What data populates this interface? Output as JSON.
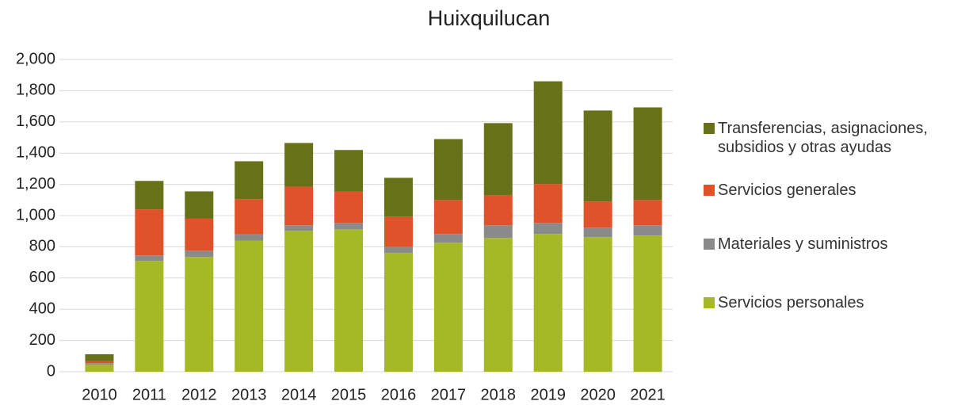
{
  "chart_data": {
    "type": "stacked_bar",
    "title": "Huixquilucan",
    "categories": [
      "2010",
      "2011",
      "2012",
      "2013",
      "2014",
      "2015",
      "2016",
      "2017",
      "2018",
      "2019",
      "2020",
      "2021"
    ],
    "series": [
      {
        "name": "Servicios personales",
        "color": "#a5b826",
        "values": [
          45,
          710,
          735,
          840,
          902,
          912,
          760,
          826,
          857,
          882,
          862,
          872
        ]
      },
      {
        "name": "Materiales y suministros",
        "color": "#8a8a8a",
        "values": [
          10,
          35,
          40,
          40,
          36,
          41,
          40,
          56,
          81,
          71,
          61,
          66
        ]
      },
      {
        "name": "Servicios generales",
        "color": "#e0522a",
        "values": [
          12,
          295,
          205,
          225,
          247,
          202,
          193,
          218,
          192,
          249,
          167,
          162
        ]
      },
      {
        "name": "Transferencias, asignaciones, subsidios y otras ayudas",
        "color": "#667118",
        "values": [
          45,
          182,
          175,
          243,
          280,
          265,
          249,
          390,
          462,
          658,
          583,
          593
        ]
      }
    ],
    "ylim": [
      0,
      2000
    ],
    "yticks": [
      0,
      200,
      400,
      600,
      800,
      {
        "value": 1000,
        "label": "1,000"
      },
      {
        "value": 1200,
        "label": "1,200"
      },
      {
        "value": 1400,
        "label": "1,400"
      },
      {
        "value": 1600,
        "label": "1,600"
      },
      {
        "value": 1800,
        "label": "1,800"
      },
      {
        "value": 2000,
        "label": "2,000"
      }
    ],
    "grid": true
  }
}
